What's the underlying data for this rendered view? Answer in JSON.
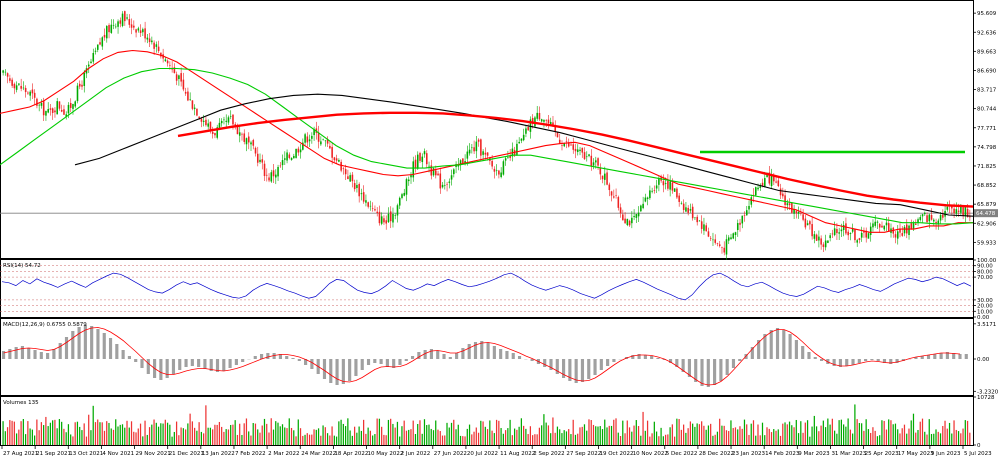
{
  "chart_data": [
    {
      "type": "candlestick",
      "pane": "price",
      "y_ticks": [
        "95.609",
        "92.636",
        "89.663",
        "86.690",
        "83.717",
        "80.744",
        "77.771",
        "74.798",
        "71.825",
        "68.852",
        "65.879",
        "62.906",
        "59.933"
      ],
      "ylim": [
        57.5,
        97.5
      ],
      "current_price": 64.478,
      "current_price_label": "64.478",
      "x_ticks": [
        "27 Aug 2021",
        "21 Sep 2021",
        "13 Oct 2021",
        "4 Nov 2021",
        "29 Nov 2021",
        "21 Dec 2021",
        "13 Jan 2022",
        "7 Feb 2022",
        "2 Mar 2022",
        "24 Mar 2022",
        "18 Apr 2022",
        "10 May 2022",
        "2 Jun 2022",
        "27 Jun 2022",
        "20 Jul 2022",
        "11 Aug 2022",
        "2 Sep 2022",
        "27 Sep 2022",
        "19 Oct 2022",
        "10 Nov 2022",
        "5 Dec 2022",
        "28 Dec 2022",
        "23 Jan 2023",
        "14 Feb 2023",
        "9 Mar 2023",
        "31 Mar 2023",
        "25 Apr 2023",
        "17 May 2023",
        "9 Jun 2023",
        "5 Jul 2023"
      ],
      "close_path": [
        86,
        85,
        84,
        83,
        81,
        80,
        81.5,
        80,
        83,
        86,
        89,
        92,
        94,
        95,
        94,
        93,
        92,
        90,
        88,
        86,
        83,
        81,
        79,
        77,
        78,
        79,
        77,
        75,
        73,
        70,
        71,
        73,
        74,
        76,
        77,
        76,
        74,
        72,
        70,
        68,
        66,
        64,
        63,
        65,
        68,
        72,
        74,
        71,
        69,
        70,
        72,
        74,
        75,
        73,
        71,
        72,
        74,
        76,
        79,
        80,
        78,
        76,
        75,
        74,
        73,
        72,
        70,
        67,
        64,
        63,
        65,
        68,
        70,
        69,
        67,
        65,
        64,
        62,
        60,
        59,
        61,
        64,
        67,
        69,
        70,
        68,
        66,
        64,
        63,
        61,
        59.5,
        61,
        62.5,
        61.5,
        60.5,
        62,
        63,
        62.5,
        61,
        62,
        63,
        64,
        63.5,
        64.5,
        65.5,
        65,
        64.5
      ],
      "series": [
        {
          "name": "",
          "color": "#ff0000",
          "style": "thin",
          "values": [
            80,
            80.5,
            81,
            82,
            83.5,
            85,
            87,
            88.5,
            89.5,
            89.8,
            89.6,
            89,
            88,
            86.5,
            85,
            83.5,
            82,
            80.5,
            79,
            77.5,
            76,
            74.5,
            73,
            72,
            71.5,
            71,
            70.5,
            70.3,
            70.5,
            71,
            71.5,
            72,
            72.5,
            73,
            73.5,
            74,
            74.5,
            75,
            75.3,
            75.5,
            75,
            74,
            73,
            72,
            71,
            70,
            69,
            68.5,
            68,
            67.5,
            67,
            66.5,
            66,
            65.5,
            65,
            64,
            63,
            62.5,
            62,
            61.5,
            61.5,
            62,
            62,
            62.5,
            62.5,
            63,
            63
          ]
        },
        {
          "name": "",
          "color": "#00cc00",
          "style": "thin",
          "values": [
            72,
            74,
            76,
            78,
            80,
            82,
            84,
            85.5,
            86.5,
            87,
            87,
            86.8,
            86.3,
            85.5,
            84.5,
            83,
            81,
            79,
            77,
            75,
            73.5,
            72.5,
            72,
            71.5,
            71.5,
            71.8,
            72,
            72.5,
            73,
            73.5,
            73.5,
            73,
            72.5,
            72,
            71.5,
            71,
            70.5,
            70,
            69.5,
            69,
            68.5,
            68,
            67.5,
            67,
            66.5,
            66,
            65.5,
            65,
            64.5,
            64,
            63.5,
            63,
            63,
            62.8,
            62.8,
            63
          ]
        },
        {
          "name": "",
          "color": "#000000",
          "style": "thin",
          "values": [
            72,
            73,
            74.5,
            76,
            77.5,
            79,
            80.5,
            81.5,
            82.3,
            82.8,
            83,
            82.8,
            82.3,
            81.8,
            81.2,
            80.6,
            80,
            79.3,
            78.6,
            77.8,
            77,
            76,
            75,
            74,
            73,
            72,
            71,
            70,
            69,
            68,
            67.5,
            67,
            66.5,
            66,
            65.8,
            65,
            64.2,
            64
          ]
        },
        {
          "name": "",
          "color": "#ff0000",
          "style": "thick",
          "values": [
            76.5,
            77.2,
            77.9,
            78.5,
            79,
            79.4,
            79.8,
            80,
            80.1,
            80.1,
            80,
            79.7,
            79.3,
            78.8,
            78.2,
            77.5,
            76.7,
            75.8,
            74.8,
            73.8,
            72.8,
            71.8,
            70.8,
            69.8,
            68.9,
            68,
            67.2,
            66.6,
            66.1,
            65.7,
            65.5
          ]
        },
        {
          "name": "",
          "color": "#00cc00",
          "style": "thick",
          "values": [
            74,
            74,
            74,
            74,
            74,
            74,
            74,
            74,
            74,
            74,
            74,
            74
          ]
        }
      ]
    },
    {
      "type": "line",
      "pane": "indicator",
      "label": "RSI(14) 54.72",
      "value": 54.72,
      "ylim": [
        0,
        100
      ],
      "y_ticks": [
        "100.00",
        "90.00",
        "80.00",
        "70.00",
        "30.00",
        "20.00",
        "10.00",
        "0.00"
      ],
      "levels": [
        90,
        80,
        70,
        30,
        20,
        10
      ],
      "color": "#0000cc",
      "values": [
        62,
        60,
        55,
        64,
        58,
        67,
        61,
        57,
        52,
        58,
        63,
        57,
        52,
        60,
        66,
        72,
        77,
        75,
        69,
        62,
        55,
        48,
        44,
        42,
        48,
        56,
        62,
        57,
        60,
        54,
        48,
        43,
        39,
        35,
        33,
        37,
        47,
        54,
        59,
        55,
        51,
        46,
        42,
        37,
        33,
        36,
        47,
        59,
        66,
        64,
        55,
        47,
        43,
        41,
        46,
        54,
        64,
        57,
        50,
        47,
        52,
        58,
        55,
        61,
        66,
        62,
        57,
        53,
        55,
        59,
        63,
        68,
        74,
        77,
        71,
        63,
        56,
        51,
        47,
        51,
        55,
        52,
        47,
        41,
        37,
        33,
        39,
        46,
        52,
        57,
        62,
        66,
        61,
        55,
        49,
        44,
        39,
        33,
        30,
        39,
        53,
        65,
        74,
        77,
        71,
        63,
        56,
        53,
        58,
        61,
        55,
        48,
        42,
        38,
        36,
        40,
        47,
        54,
        51,
        46,
        43,
        48,
        52,
        57,
        53,
        48,
        45,
        51,
        58,
        63,
        68,
        66,
        62,
        65,
        70,
        67,
        61,
        55,
        60,
        54
      ]
    },
    {
      "type": "bar+line",
      "pane": "indicator",
      "label": "MACD(12,26,9) 0.6755 0.5879",
      "ylim": [
        -3.6,
        4.0
      ],
      "y_ticks": [
        "3.5171",
        "0.00",
        "-3.2320"
      ],
      "histogram_color": "#a0a0a0",
      "signal_color": "#ff0000",
      "histogram": [
        0.8,
        1,
        1.2,
        1.3,
        1.1,
        0.9,
        0.7,
        0.6,
        1,
        1.6,
        2.2,
        2.8,
        3.2,
        3.4,
        3.3,
        3,
        2.6,
        2.1,
        1.5,
        0.9,
        0.3,
        -0.3,
        -0.9,
        -1.5,
        -1.9,
        -2.1,
        -1.9,
        -1.5,
        -1.1,
        -0.8,
        -0.7,
        -0.8,
        -1,
        -1.2,
        -1.3,
        -1.2,
        -0.9,
        -0.6,
        -0.3,
        0,
        0.3,
        0.5,
        0.6,
        0.6,
        0.5,
        0.3,
        0.1,
        -0.2,
        -0.6,
        -1,
        -1.5,
        -2,
        -2.4,
        -2.6,
        -2.5,
        -2.2,
        -1.7,
        -1.1,
        -0.6,
        -0.4,
        -0.5,
        -0.8,
        -0.9,
        -0.6,
        -0.2,
        0.3,
        0.7,
        0.9,
        1,
        0.8,
        0.5,
        0.2,
        0.6,
        1.1,
        1.5,
        1.7,
        1.8,
        1.6,
        1.3,
        1,
        0.8,
        0.6,
        0.3,
        0,
        -0.2,
        -0.5,
        -0.8,
        -1.1,
        -1.5,
        -1.9,
        -2.2,
        -2.4,
        -2.3,
        -2,
        -1.6,
        -1.1,
        -0.7,
        -0.3,
        0,
        0.2,
        0.4,
        0.5,
        0.4,
        0.3,
        0.1,
        -0.1,
        -0.4,
        -0.8,
        -1.3,
        -1.8,
        -2.3,
        -2.7,
        -2.8,
        -2.6,
        -2.2,
        -1.6,
        -0.9,
        -0.2,
        0.5,
        1.2,
        1.9,
        2.5,
        2.9,
        3.1,
        2.9,
        2.5,
        1.9,
        1.3,
        0.7,
        0.2,
        -0.2,
        -0.5,
        -0.7,
        -0.8,
        -0.7,
        -0.6,
        -0.4,
        -0.2,
        -0.1,
        -0.2,
        -0.4,
        -0.5,
        -0.4,
        -0.2,
        0,
        0.2,
        0.3,
        0.4,
        0.5,
        0.6,
        0.7,
        0.6,
        0.5,
        0.5
      ],
      "signal": [
        0.6,
        0.75,
        0.9,
        1.05,
        1.1,
        1.05,
        0.95,
        0.85,
        0.95,
        1.25,
        1.65,
        2.1,
        2.55,
        2.9,
        3.1,
        3.15,
        3,
        2.7,
        2.3,
        1.85,
        1.3,
        0.75,
        0.15,
        -0.45,
        -0.95,
        -1.35,
        -1.55,
        -1.55,
        -1.4,
        -1.2,
        -1.05,
        -0.95,
        -0.95,
        -1.05,
        -1.15,
        -1.2,
        -1.1,
        -0.95,
        -0.75,
        -0.5,
        -0.25,
        0,
        0.2,
        0.35,
        0.45,
        0.45,
        0.35,
        0.2,
        -0.05,
        -0.35,
        -0.75,
        -1.15,
        -1.6,
        -2,
        -2.25,
        -2.3,
        -2.15,
        -1.85,
        -1.45,
        -1.05,
        -0.8,
        -0.75,
        -0.8,
        -0.75,
        -0.55,
        -0.2,
        0.2,
        0.55,
        0.8,
        0.85,
        0.75,
        0.6,
        0.6,
        0.8,
        1.1,
        1.4,
        1.6,
        1.65,
        1.55,
        1.35,
        1.1,
        0.85,
        0.6,
        0.3,
        0.05,
        -0.25,
        -0.55,
        -0.85,
        -1.2,
        -1.55,
        -1.85,
        -2.1,
        -2.2,
        -2.15,
        -1.9,
        -1.5,
        -1.05,
        -0.6,
        -0.2,
        0.1,
        0.3,
        0.4,
        0.4,
        0.35,
        0.2,
        0,
        -0.3,
        -0.7,
        -1.15,
        -1.6,
        -2.05,
        -2.45,
        -2.6,
        -2.55,
        -2.25,
        -1.75,
        -1.1,
        -0.4,
        0.3,
        1,
        1.65,
        2.25,
        2.7,
        2.95,
        2.95,
        2.7,
        2.25,
        1.7,
        1.1,
        0.55,
        0.1,
        -0.3,
        -0.55,
        -0.7,
        -0.7,
        -0.6,
        -0.45,
        -0.3,
        -0.2,
        -0.25,
        -0.35,
        -0.4,
        -0.3,
        -0.15,
        0.05,
        0.2,
        0.3,
        0.4,
        0.5,
        0.6,
        0.6,
        0.55,
        0.5
      ]
    },
    {
      "type": "bar",
      "pane": "indicator",
      "label": "Volumes 135",
      "ylim": [
        0,
        10728
      ],
      "y_ticks": [
        "10728",
        "0"
      ],
      "up_color": "#00aa00",
      "down_color": "#ee3333"
    }
  ]
}
